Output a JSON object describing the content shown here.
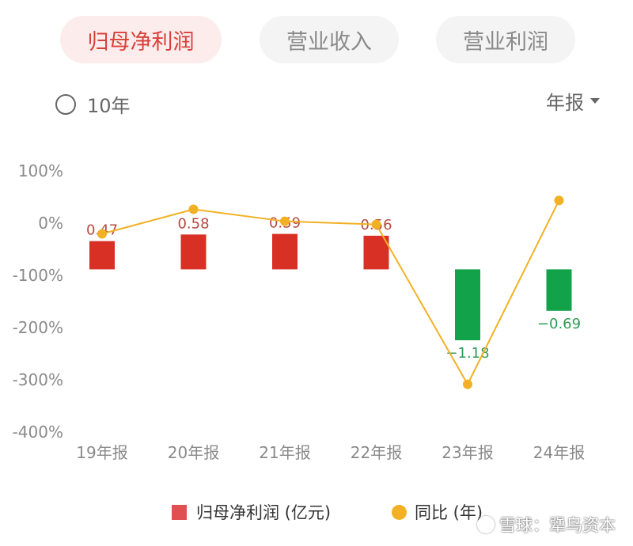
{
  "tabs": [
    {
      "label": "归母净利润",
      "active": true
    },
    {
      "label": "营业收入",
      "active": false
    },
    {
      "label": "营业利润",
      "active": false
    }
  ],
  "toggle": {
    "label": "10年",
    "checked": false
  },
  "period_select": {
    "label": "年报"
  },
  "legend": {
    "profit_label": "归母净利润 (亿元)",
    "yoy_label": "同比 (年)"
  },
  "watermark": "雪球：犟鸟资本",
  "colors": {
    "positive": "#d93025",
    "negative": "#12a24a",
    "line": "#f2b124",
    "positive_label": "#b54a3e",
    "negative_label": "#2f9a55"
  },
  "chart_data": {
    "type": "bar",
    "categories": [
      "19年报",
      "20年报",
      "21年报",
      "22年报",
      "23年报",
      "24年报"
    ],
    "series": [
      {
        "name": "归母净利润 (亿元)",
        "type": "bar",
        "values": [
          0.47,
          0.58,
          0.59,
          0.56,
          -1.18,
          -0.69
        ],
        "labels": [
          "0.47",
          "0.58",
          "0.59",
          "0.56",
          "−1.18",
          "−0.69"
        ]
      },
      {
        "name": "同比 (年)",
        "type": "line",
        "values": [
          -22,
          25,
          2,
          -4,
          -310,
          42
        ]
      }
    ],
    "yticks": [
      "100%",
      "0%",
      "-100%",
      "-200%",
      "-300%",
      "-400%"
    ],
    "ylim": [
      -400,
      100
    ]
  }
}
